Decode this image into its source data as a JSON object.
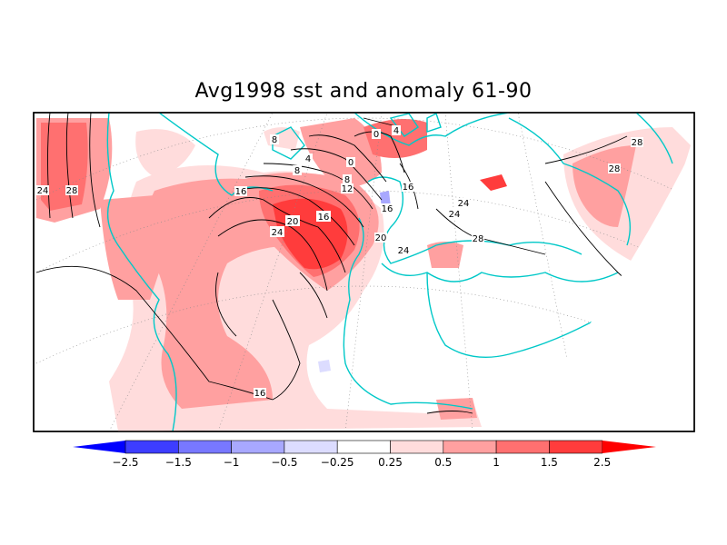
{
  "title": "Avg1998 sst and anomaly 61-90",
  "colorbar": {
    "levels": [
      "-2.5",
      "-1.5",
      "-1",
      "-0.5",
      "-0.25",
      "0.25",
      "0.5",
      "1",
      "1.5",
      "2.5"
    ],
    "colors": [
      "#0000ff",
      "#3d3dff",
      "#7878ff",
      "#a8a8ff",
      "#dcdcff",
      "#ffffff",
      "#ffdcdc",
      "#ffa0a0",
      "#ff7070",
      "#ff3c3c",
      "#ff0000"
    ]
  },
  "contour_labels": [
    "28",
    "24",
    "16",
    "8",
    "8",
    "4",
    "4",
    "0",
    "0",
    "8",
    "12",
    "16",
    "20",
    "24",
    "16",
    "20",
    "24",
    "24",
    "24",
    "28",
    "28",
    "28",
    "16",
    "16"
  ],
  "colors": {
    "coast": "#00c8c8",
    "contour": "#000000",
    "frame": "#000000"
  }
}
